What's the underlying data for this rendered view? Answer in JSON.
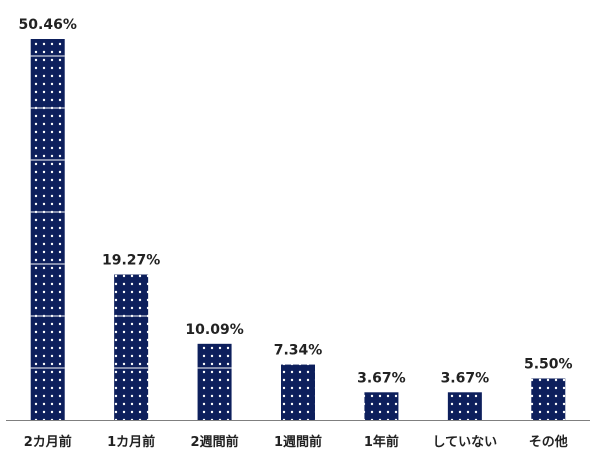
{
  "chart_data": {
    "type": "bar",
    "title": "",
    "xlabel": "",
    "ylabel": "",
    "ylim": [
      0,
      50.46
    ],
    "grid": false,
    "legend": "none",
    "categories": [
      "2カ月前",
      "1カ月前",
      "2週間前",
      "1週間前",
      "1年前",
      "していない",
      "その他"
    ],
    "values": [
      50.46,
      19.27,
      10.09,
      7.34,
      3.67,
      3.67,
      5.5
    ],
    "value_labels": [
      "50.46%",
      "19.27%",
      "10.09%",
      "7.34%",
      "3.67%",
      "3.67%",
      "5.50%"
    ]
  },
  "colors": {
    "bar": "#0d1f5c",
    "bar_dot": "#ffffff",
    "axis": "#7f7f7f"
  }
}
